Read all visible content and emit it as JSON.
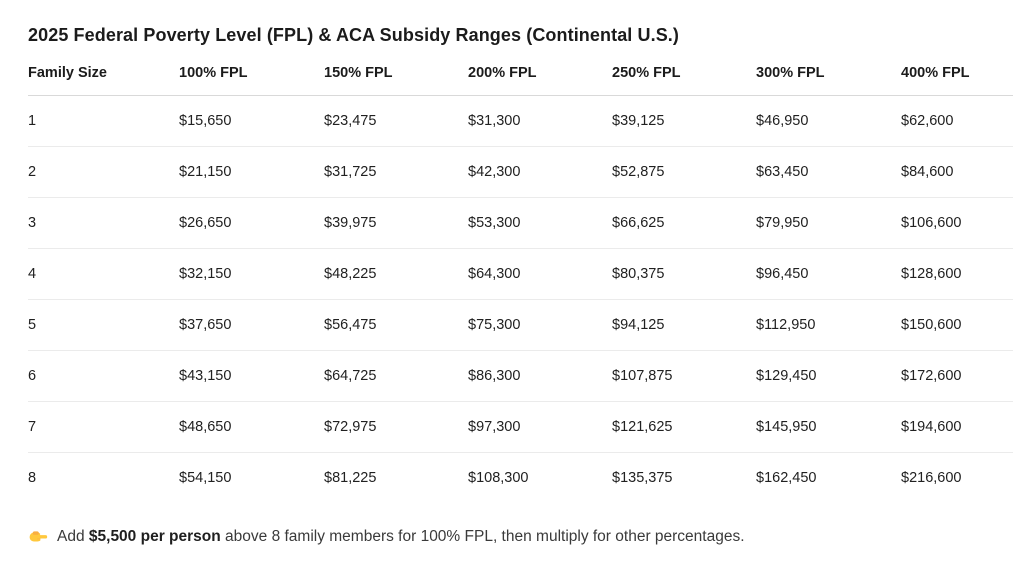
{
  "title": "2025 Federal Poverty Level (FPL) & ACA Subsidy Ranges (Continental U.S.)",
  "chart_data": {
    "type": "table",
    "title": "2025 Federal Poverty Level (FPL) & ACA Subsidy Ranges (Continental U.S.)",
    "columns": [
      "Family Size",
      "100% FPL",
      "150% FPL",
      "200% FPL",
      "250% FPL",
      "300% FPL",
      "400% FPL"
    ],
    "rows": [
      [
        "1",
        "$15,650",
        "$23,475",
        "$31,300",
        "$39,125",
        "$46,950",
        "$62,600"
      ],
      [
        "2",
        "$21,150",
        "$31,725",
        "$42,300",
        "$52,875",
        "$63,450",
        "$84,600"
      ],
      [
        "3",
        "$26,650",
        "$39,975",
        "$53,300",
        "$66,625",
        "$79,950",
        "$106,600"
      ],
      [
        "4",
        "$32,150",
        "$48,225",
        "$64,300",
        "$80,375",
        "$96,450",
        "$128,600"
      ],
      [
        "5",
        "$37,650",
        "$56,475",
        "$75,300",
        "$94,125",
        "$112,950",
        "$150,600"
      ],
      [
        "6",
        "$43,150",
        "$64,725",
        "$86,300",
        "$107,875",
        "$129,450",
        "$172,600"
      ],
      [
        "7",
        "$48,650",
        "$72,975",
        "$97,300",
        "$121,625",
        "$145,950",
        "$194,600"
      ],
      [
        "8",
        "$54,150",
        "$81,225",
        "$108,300",
        "$135,375",
        "$162,450",
        "$216,600"
      ]
    ]
  },
  "note": {
    "icon": "pointing-right-emoji",
    "prefix": "Add ",
    "bold": "$5,500 per person",
    "suffix": " above 8 family members for 100% FPL, then multiply for other percentages."
  },
  "colors": {
    "text": "#1b1b1b",
    "cell_text": "#212121",
    "note_text": "#3a3a3a",
    "divider": "#ebebeb",
    "header_divider": "#d9d9d9",
    "emoji": "#FFC83D",
    "emoji_shade": "#F9AE41",
    "bg": "#ffffff"
  }
}
